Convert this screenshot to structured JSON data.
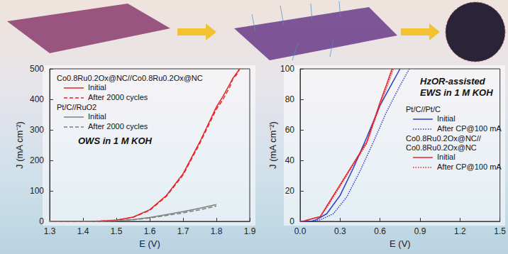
{
  "chart_data": [
    {
      "type": "line",
      "x_label": "E (V)",
      "y_label": "J (mA cm⁻²)",
      "annotations": [
        "OWS in 1 M KOH"
      ],
      "xlim": [
        1.3,
        1.9
      ],
      "xticks": [
        1.3,
        1.4,
        1.5,
        1.6,
        1.7,
        1.8,
        1.9
      ],
      "ylim": [
        0,
        500
      ],
      "yticks": [
        0,
        100,
        200,
        300,
        400,
        500
      ],
      "grid": false,
      "series": [
        {
          "group": "Co0.8Ru0.2Ox@NC//Co0.8Ru0.2Ox@NC",
          "name": "Initial",
          "color": "#e3262a",
          "line_style": "solid",
          "x": [
            1.3,
            1.4,
            1.45,
            1.5,
            1.55,
            1.6,
            1.65,
            1.7,
            1.75,
            1.8,
            1.82,
            1.84,
            1.85,
            1.86,
            1.87
          ],
          "values": [
            0,
            0,
            1,
            4,
            14,
            38,
            85,
            156,
            260,
            375,
            410,
            450,
            470,
            485,
            500
          ]
        },
        {
          "group": "Co0.8Ru0.2Ox@NC//Co0.8Ru0.2Ox@NC",
          "name": "After 2000 cycles",
          "color": "#e3262a",
          "line_style": "dashed",
          "x": [
            1.3,
            1.4,
            1.45,
            1.5,
            1.55,
            1.6,
            1.65,
            1.7,
            1.75,
            1.8,
            1.82,
            1.84,
            1.85,
            1.86,
            1.87
          ],
          "values": [
            0,
            0,
            1,
            4,
            13,
            36,
            82,
            152,
            255,
            368,
            400,
            440,
            470,
            480,
            500
          ]
        },
        {
          "group": "Pt/C//RuO2",
          "name": "Initial",
          "color": "#7f7f7f",
          "line_style": "solid",
          "x": [
            1.3,
            1.4,
            1.45,
            1.5,
            1.55,
            1.6,
            1.65,
            1.7,
            1.75,
            1.8
          ],
          "values": [
            0,
            0,
            0,
            2,
            6,
            13,
            22,
            32,
            43,
            55
          ]
        },
        {
          "group": "Pt/C//RuO2",
          "name": "After 2000 cycles",
          "color": "#7f7f7f",
          "line_style": "dashed",
          "x": [
            1.3,
            1.4,
            1.45,
            1.5,
            1.55,
            1.6,
            1.65,
            1.7,
            1.75,
            1.8
          ],
          "values": [
            0,
            0,
            0,
            1,
            5,
            11,
            19,
            28,
            38,
            50
          ]
        }
      ]
    },
    {
      "type": "line",
      "x_label": "E (V)",
      "y_label": "J (mA cm⁻²)",
      "annotations": [
        "HzOR-assisted\nEWS in 1 M KOH"
      ],
      "xlim": [
        0,
        1.5
      ],
      "xticks": [
        {
          "value": 0,
          "label": "0.0"
        },
        0.3,
        0.6,
        0.9,
        1.2,
        1.5
      ],
      "ylim": [
        0,
        100
      ],
      "yticks": [
        0,
        20,
        40,
        60,
        80,
        100
      ],
      "grid": false,
      "series": [
        {
          "group": "Pt/C//Pt/C",
          "name": "Initial",
          "color": "#2b3fc6",
          "line_style": "solid",
          "x": [
            0,
            0.08,
            0.12,
            0.2,
            0.3,
            0.4,
            0.5,
            0.6,
            0.7,
            0.75
          ],
          "values": [
            0,
            0,
            1,
            5,
            17,
            35,
            55,
            76,
            92,
            100
          ]
        },
        {
          "group": "Pt/C//Pt/C",
          "name": "After CP@100 mA",
          "color": "#2b3fc6",
          "line_style": "dotted",
          "x": [
            0,
            0.1,
            0.15,
            0.25,
            0.35,
            0.45,
            0.55,
            0.65,
            0.75,
            0.82
          ],
          "values": [
            0,
            0,
            1,
            5,
            16,
            33,
            52,
            72,
            89,
            100
          ]
        },
        {
          "group": "Co0.8Ru0.2Ox@NC//\nCo0.8Ru0.2Ox@NC",
          "name": "Initial",
          "color": "#e3262a",
          "line_style": "solid",
          "x": [
            0,
            0.02,
            0.1,
            0.15,
            0.2,
            0.3,
            0.4,
            0.5,
            0.6,
            0.65,
            0.69
          ],
          "values": [
            0,
            0,
            2,
            3,
            10,
            24,
            38,
            52,
            78,
            90,
            100
          ]
        },
        {
          "group": "Co0.8Ru0.2Ox@NC//\nCo0.8Ru0.2Ox@NC",
          "name": "After CP@100 mA",
          "color": "#e3262a",
          "line_style": "dotted",
          "x": [
            0,
            0.02,
            0.1,
            0.15,
            0.2,
            0.3,
            0.4,
            0.5,
            0.6,
            0.66,
            0.7
          ],
          "values": [
            0,
            0,
            2,
            3,
            9,
            23,
            37,
            51,
            76,
            90,
            100
          ]
        }
      ]
    }
  ]
}
